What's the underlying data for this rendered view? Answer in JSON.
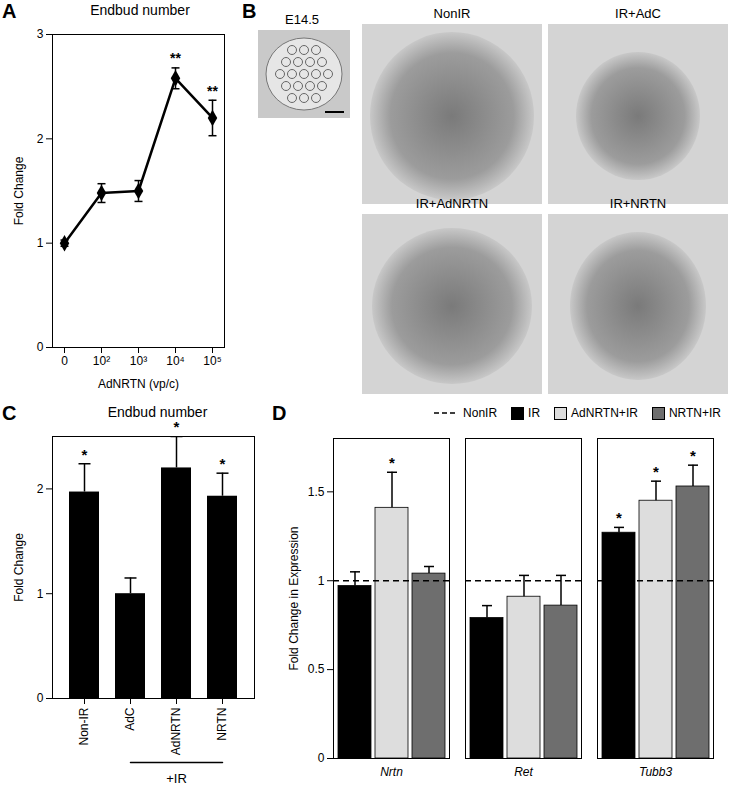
{
  "chart_data": [
    {
      "panel": "A",
      "type": "line",
      "title": "Endbud number",
      "x_label": "AdNRTN (vp/c)",
      "y_label": "Fold Change",
      "categories": [
        "0",
        "10²",
        "10³",
        "10⁴",
        "10⁵"
      ],
      "values": [
        1.0,
        1.48,
        1.5,
        2.58,
        2.2
      ],
      "errors": [
        0.03,
        0.09,
        0.1,
        0.1,
        0.17
      ],
      "significance": [
        null,
        null,
        null,
        "**",
        "**"
      ],
      "color": "#000000",
      "marker": "diamond",
      "ylim": [
        0,
        3
      ],
      "yticks": [
        0,
        1,
        2,
        3
      ]
    },
    {
      "panel": "C",
      "type": "bar",
      "title": "Endbud  number",
      "y_label": "Fold Change",
      "categories": [
        "Non-IR",
        "AdC",
        "AdNRTN",
        "NRTN"
      ],
      "values": [
        1.97,
        1.0,
        2.2,
        1.93
      ],
      "errors": [
        0.27,
        0.15,
        0.3,
        0.22
      ],
      "significance": [
        "*",
        null,
        "*",
        "*"
      ],
      "group_label": "+IR",
      "group": [
        "AdC",
        "AdNRTN",
        "NRTN"
      ],
      "color": "#000000",
      "ylim": [
        0,
        2.5
      ],
      "yticks": [
        0,
        1,
        2
      ]
    },
    {
      "panel": "D",
      "type": "bar",
      "y_label": "Fold Change in Expression",
      "categories": [
        "Nrtn",
        "Ret",
        "Tubb3"
      ],
      "series": [
        {
          "name": "NonIR",
          "type": "line",
          "line_style": "dashed",
          "color": "#000000",
          "values": [
            1,
            1,
            1
          ]
        },
        {
          "name": "IR",
          "type": "bar",
          "color": "#000000",
          "values": [
            0.97,
            0.79,
            1.27
          ],
          "errors": [
            0.08,
            0.07,
            0.03
          ],
          "significance": [
            null,
            null,
            "*"
          ]
        },
        {
          "name": "AdNRTN+IR",
          "type": "bar",
          "color": "#dddddd",
          "values": [
            1.41,
            0.91,
            1.45
          ],
          "errors": [
            0.2,
            0.12,
            0.11
          ],
          "significance": [
            "*",
            null,
            "*"
          ]
        },
        {
          "name": "NRTN+IR",
          "type": "bar",
          "color": "#6e6e6e",
          "values": [
            1.04,
            0.86,
            1.53
          ],
          "errors": [
            0.04,
            0.17,
            0.12
          ],
          "significance": [
            null,
            null,
            "*"
          ]
        }
      ],
      "legend": "top-right",
      "ylim": [
        0,
        1.8
      ],
      "yticks": [
        0,
        0.5,
        1,
        1.5
      ]
    }
  ],
  "images": {
    "panel": "B",
    "inset_label": "E14.5",
    "image_labels": [
      "NonIR",
      "IR+AdC",
      "IR+AdNRTN",
      "IR+NRTN"
    ]
  }
}
